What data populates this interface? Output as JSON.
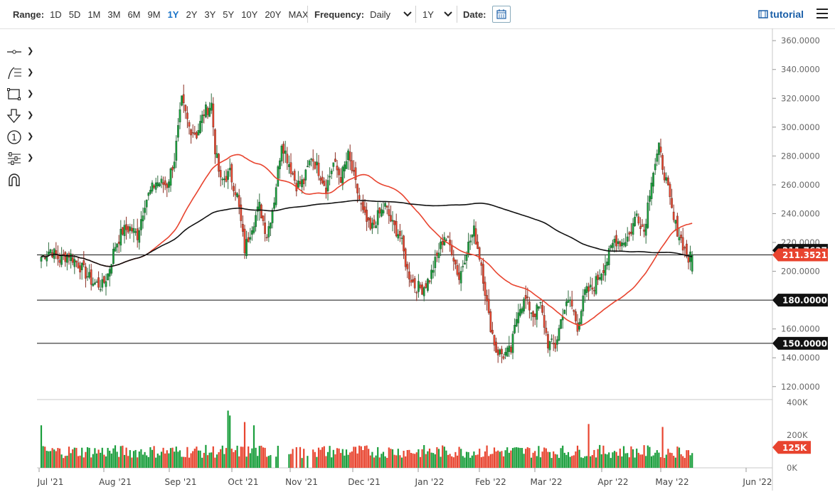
{
  "toolbar": {
    "range_label": "Range:",
    "ranges": [
      "1D",
      "5D",
      "1M",
      "3M",
      "6M",
      "9M",
      "1Y",
      "2Y",
      "3Y",
      "5Y",
      "10Y",
      "20Y",
      "MAX"
    ],
    "active_range": "1Y",
    "frequency_label": "Frequency:",
    "frequency_value": "Daily",
    "period_value": "1Y",
    "date_label": "Date:",
    "tutorial_label": "tutorial"
  },
  "tools": [
    "crosshair-tool",
    "fibonacci-tool",
    "rectangle-tool",
    "arrow-down-tool",
    "number-marker-tool",
    "indicator-settings-tool",
    "magnet-tool"
  ],
  "colors": {
    "up": "#1a9e3c",
    "down": "#e8442f",
    "ma_fast": "#e8442f",
    "ma_slow": "#111111",
    "price_tag": "#e8442f",
    "level_tag": "#111111",
    "volume_tag": "#e8442f"
  },
  "chart_data": {
    "type": "candlestick",
    "title": "",
    "yaxis": {
      "ticks": [
        "120.0000",
        "140.0000",
        "160.0000",
        "180.0000",
        "200.0000",
        "220.0000",
        "240.0000",
        "260.0000",
        "280.0000",
        "300.0000",
        "320.0000",
        "340.0000",
        "360.0000"
      ],
      "ylim": [
        111,
        366
      ]
    },
    "xaxis": {
      "ticks": [
        "Jul '21",
        "Aug '21",
        "Sep '21",
        "Oct '21",
        "Nov '21",
        "Dec '21",
        "Jan '22",
        "Feb '22",
        "Mar '22",
        "Apr '22",
        "May '22",
        "Jun '22"
      ]
    },
    "horizontal_levels": [
      {
        "value": 211.3521,
        "label": "211.3521",
        "kind": "price"
      },
      {
        "value": 180,
        "label": "180.0000",
        "kind": "level"
      },
      {
        "value": 150,
        "label": "150.0000",
        "kind": "level"
      }
    ],
    "hidden_ma_label": "211.7637",
    "price_anchors": [
      [
        0,
        210
      ],
      [
        5,
        215
      ],
      [
        10,
        208
      ],
      [
        15,
        212
      ],
      [
        20,
        205
      ],
      [
        28,
        192
      ],
      [
        33,
        190
      ],
      [
        36,
        198
      ],
      [
        40,
        218
      ],
      [
        44,
        228
      ],
      [
        48,
        230
      ],
      [
        52,
        225
      ],
      [
        56,
        248
      ],
      [
        62,
        262
      ],
      [
        68,
        260
      ],
      [
        72,
        278
      ],
      [
        76,
        318
      ],
      [
        80,
        300
      ],
      [
        84,
        295
      ],
      [
        88,
        310
      ],
      [
        92,
        316
      ],
      [
        94,
        285
      ],
      [
        97,
        262
      ],
      [
        102,
        268
      ],
      [
        106,
        252
      ],
      [
        110,
        215
      ],
      [
        114,
        232
      ],
      [
        118,
        245
      ],
      [
        122,
        225
      ],
      [
        126,
        250
      ],
      [
        130,
        290
      ],
      [
        134,
        275
      ],
      [
        138,
        260
      ],
      [
        142,
        262
      ],
      [
        146,
        280
      ],
      [
        150,
        270
      ],
      [
        154,
        258
      ],
      [
        158,
        275
      ],
      [
        162,
        265
      ],
      [
        166,
        280
      ],
      [
        170,
        260
      ],
      [
        174,
        240
      ],
      [
        178,
        228
      ],
      [
        182,
        238
      ],
      [
        186,
        245
      ],
      [
        190,
        232
      ],
      [
        194,
        225
      ],
      [
        198,
        200
      ],
      [
        202,
        190
      ],
      [
        206,
        188
      ],
      [
        210,
        195
      ],
      [
        214,
        210
      ],
      [
        218,
        225
      ],
      [
        222,
        215
      ],
      [
        226,
        195
      ],
      [
        230,
        215
      ],
      [
        234,
        228
      ],
      [
        238,
        205
      ],
      [
        242,
        168
      ],
      [
        246,
        145
      ],
      [
        250,
        142
      ],
      [
        254,
        145
      ],
      [
        258,
        175
      ],
      [
        262,
        180
      ],
      [
        266,
        170
      ],
      [
        270,
        176
      ],
      [
        274,
        150
      ],
      [
        278,
        148
      ],
      [
        282,
        172
      ],
      [
        286,
        180
      ],
      [
        290,
        162
      ],
      [
        294,
        185
      ],
      [
        298,
        188
      ],
      [
        302,
        198
      ],
      [
        306,
        208
      ],
      [
        310,
        222
      ],
      [
        314,
        220
      ],
      [
        318,
        225
      ],
      [
        322,
        240
      ],
      [
        326,
        228
      ],
      [
        330,
        265
      ],
      [
        334,
        285
      ],
      [
        338,
        262
      ],
      [
        342,
        235
      ],
      [
        346,
        222
      ],
      [
        350,
        208
      ],
      [
        352,
        211
      ]
    ],
    "volume_axis": {
      "ticks": [
        "0K",
        "200K",
        "400K"
      ],
      "max": 400,
      "current_label": "125K"
    },
    "volume_spikes": [
      {
        "bar": 0,
        "value": 260
      },
      {
        "bar": 101,
        "value": 350
      },
      {
        "bar": 102,
        "value": 320
      },
      {
        "bar": 110,
        "value": 280
      },
      {
        "bar": 115,
        "value": 260
      },
      {
        "bar": 296,
        "value": 268
      },
      {
        "bar": 336,
        "value": 250
      }
    ]
  }
}
